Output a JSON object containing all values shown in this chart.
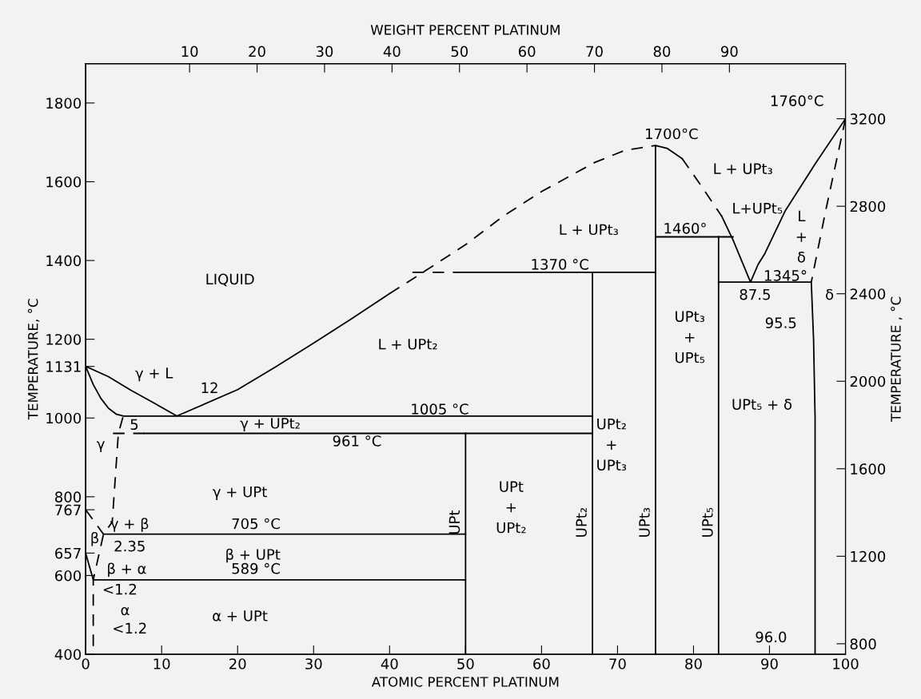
{
  "chart_data": {
    "type": "line",
    "xlabel": "ATOMIC PERCENT PLATINUM",
    "ylabel": "TEMPERATURE, °C",
    "y2label": "TEMPERATURE , °C",
    "x2label": "WEIGHT PERCENT PLATINUM",
    "xlim": [
      0,
      100
    ],
    "xticks": [
      0,
      10,
      20,
      30,
      40,
      50,
      60,
      70,
      80,
      90,
      100
    ],
    "ylim": [
      400,
      1900
    ],
    "yticks": [
      400,
      600,
      657,
      767,
      800,
      1000,
      1131,
      1200,
      1400,
      1600,
      1800
    ],
    "y2lim": [
      752,
      3452
    ],
    "y2ticks": [
      800,
      1200,
      1600,
      2000,
      2400,
      2800,
      3200
    ],
    "x2lim": [
      -5.4,
      107.2
    ],
    "x2ticks": [
      10,
      20,
      30,
      40,
      50,
      60,
      70,
      80,
      90
    ],
    "grid": false,
    "series": [
      {
        "color": "#000000",
        "line_style": "solid",
        "x": [
          0,
          3,
          6,
          9,
          12,
          15,
          20,
          25,
          30,
          35,
          40
        ],
        "values": [
          1131,
          1105,
          1070,
          1038,
          1005,
          1030,
          1072,
          1130,
          1190,
          1252,
          1316
        ]
      },
      {
        "color": "#000000",
        "line_style": "solid",
        "x": [
          0,
          1,
          2,
          3,
          4,
          5,
          66.7
        ],
        "values": [
          1131,
          1085,
          1050,
          1025,
          1010,
          1005,
          1005
        ]
      },
      {
        "color": "#000000",
        "line_style": "dashed",
        "x": [
          40,
          44,
          50,
          55,
          60,
          67,
          71,
          75
        ],
        "values": [
          1316,
          1365,
          1440,
          1513,
          1575,
          1649,
          1680,
          1692
        ]
      },
      {
        "color": "#000000",
        "line_style": "solid",
        "x": [
          75,
          75,
          76.5,
          78.5
        ],
        "values": [
          400,
          1692,
          1685,
          1659
        ]
      },
      {
        "color": "#000000",
        "line_style": "dashed",
        "x": [
          78.5,
          81,
          83.7
        ],
        "values": [
          1659,
          1590,
          1513
        ]
      },
      {
        "color": "#000000",
        "line_style": "solid",
        "x": [
          83.7,
          85.2,
          87.5,
          88.5,
          89.4,
          92.1,
          96,
          100
        ],
        "values": [
          1513,
          1452,
          1345,
          1390,
          1418,
          1527,
          1645,
          1760
        ]
      },
      {
        "color": "#000000",
        "line_style": "dashed",
        "x": [
          100,
          97.4,
          95.5
        ],
        "values": [
          1760,
          1527,
          1345
        ]
      },
      {
        "color": "#000000",
        "line_style": "solid",
        "x": [
          83.3,
          95.5,
          95.8,
          96,
          96
        ],
        "values": [
          1345,
          1345,
          1200,
          1000,
          400
        ]
      },
      {
        "color": "#000000",
        "line_style": "dashed",
        "x": [
          3.6,
          7.7
        ],
        "values": [
          961,
          961
        ]
      },
      {
        "color": "#000000",
        "line_style": "solid",
        "x": [
          7.7,
          66.7
        ],
        "values": [
          961,
          961
        ]
      },
      {
        "color": "#000000",
        "line_style": "solid",
        "x": [
          2.35,
          50,
          50
        ],
        "values": [
          705,
          705,
          961
        ]
      },
      {
        "color": "#000000",
        "line_style": "solid",
        "x": [
          50,
          50,
          1,
          0
        ],
        "values": [
          400,
          589,
          589,
          657
        ]
      },
      {
        "color": "#000000",
        "line_style": "solid",
        "x": [
          50,
          50
        ],
        "values": [
          589,
          705
        ]
      },
      {
        "color": "#000000",
        "line_style": "dashed",
        "x": [
          43,
          49
        ],
        "values": [
          1370,
          1370
        ]
      },
      {
        "color": "#000000",
        "line_style": "solid",
        "x": [
          49,
          75
        ],
        "values": [
          1370,
          1370
        ]
      },
      {
        "color": "#000000",
        "line_style": "solid",
        "x": [
          75,
          85.2
        ],
        "values": [
          1460,
          1460
        ]
      },
      {
        "color": "#000000",
        "line_style": "solid",
        "x": [
          66.7,
          66.7
        ],
        "values": [
          400,
          1370
        ]
      },
      {
        "color": "#000000",
        "line_style": "solid",
        "x": [
          83.3,
          83.3
        ],
        "values": [
          400,
          1460
        ]
      },
      {
        "color": "#000000",
        "line_style": "dashed",
        "x": [
          4.9,
          4.3,
          3.5,
          2.35,
          1,
          1
        ],
        "values": [
          1002,
          960,
          736,
          705,
          589,
          400
        ]
      },
      {
        "color": "#000000",
        "line_style": "dashed",
        "x": [
          0,
          2.35
        ],
        "values": [
          767,
          705
        ]
      }
    ],
    "annotations": [
      "LIQUID",
      "γ + L",
      "12",
      "5",
      "γ",
      "γ + UPt₂",
      "1005 °C",
      "961 °C",
      "γ + UPt",
      "γ + β",
      "705 °C",
      "2.35",
      "β",
      "β + UPt",
      "β + α",
      "589 °C",
      "<1.2",
      "α",
      "<1.2",
      "α + UPt",
      "UPt\n+\nUPt₂",
      "L + UPt₂",
      "1370 °C",
      "L + UPt₃",
      "1700°C",
      "L + UPt₃",
      "L+UPt₅",
      "1460°",
      "L\n+\nδ",
      "1345°",
      "87.5",
      "δ",
      "95.5",
      "UPt₃\n+\nUPt₅",
      "UPt₂\n+\nUPt₃",
      "UPt₅ + δ",
      "1760°C",
      "96.0",
      "UPt",
      "UPt₂",
      "UPt₃",
      "UPt₅"
    ]
  }
}
